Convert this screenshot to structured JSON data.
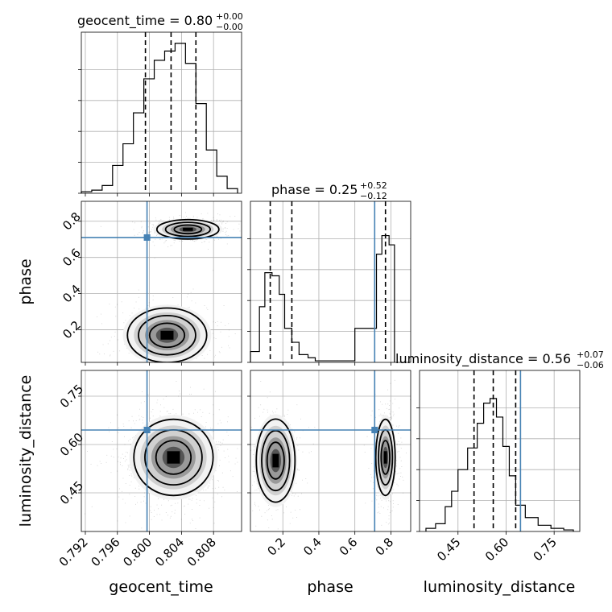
{
  "chart_data": {
    "type": "corner",
    "parameters": [
      "geocent_time",
      "phase",
      "luminosity_distance"
    ],
    "truth": {
      "geocent_time": 0.7997,
      "phase": 0.71,
      "luminosity_distance": 0.645
    },
    "truth_color": "#4682b4",
    "grid": true,
    "panels": {
      "geocent_time_hist": {
        "title_name": "geocent_time",
        "title_value": "0.80",
        "title_plus": "+0.00",
        "title_minus": "−0.00",
        "xlim": [
          0.7915,
          0.8115
        ],
        "quantiles": [
          0.7995,
          0.8027,
          0.8058
        ],
        "bin_edges": [
          0.7915,
          0.7928,
          0.7941,
          0.7954,
          0.7967,
          0.798,
          0.7993,
          0.8006,
          0.8019,
          0.8032,
          0.8045,
          0.8058,
          0.8071,
          0.8084,
          0.8097,
          0.811
        ],
        "counts": [
          0.01,
          0.02,
          0.05,
          0.18,
          0.32,
          0.52,
          0.74,
          0.86,
          0.92,
          0.97,
          0.84,
          0.58,
          0.28,
          0.11,
          0.03
        ]
      },
      "phase_hist": {
        "title_name": "phase",
        "title_value": "0.25",
        "title_plus": "+0.52",
        "title_minus": "−0.12",
        "xlim": [
          0.02,
          0.91
        ],
        "quantiles": [
          0.13,
          0.25,
          0.77
        ],
        "bin_edges": [
          0.02,
          0.07,
          0.1,
          0.14,
          0.18,
          0.21,
          0.25,
          0.29,
          0.34,
          0.38,
          0.45,
          0.5,
          0.6,
          0.72,
          0.75,
          0.79,
          0.82
        ],
        "counts": [
          0.07,
          0.36,
          0.58,
          0.56,
          0.44,
          0.22,
          0.13,
          0.05,
          0.03,
          0.01,
          0.01,
          0.01,
          0.22,
          0.7,
          0.82,
          0.76
        ]
      },
      "luminosity_distance_hist": {
        "title_name": "luminosity_distance",
        "title_value": "0.56",
        "title_plus": "+0.07",
        "title_minus": "−0.06",
        "xlim": [
          0.33,
          0.83
        ],
        "quantiles": [
          0.5,
          0.56,
          0.63
        ],
        "bin_edges": [
          0.35,
          0.38,
          0.41,
          0.43,
          0.45,
          0.48,
          0.51,
          0.53,
          0.55,
          0.57,
          0.59,
          0.61,
          0.63,
          0.66,
          0.7,
          0.74,
          0.78,
          0.81
        ],
        "counts": [
          0.02,
          0.05,
          0.16,
          0.26,
          0.4,
          0.54,
          0.7,
          0.83,
          0.86,
          0.74,
          0.55,
          0.36,
          0.17,
          0.09,
          0.04,
          0.02,
          0.01
        ]
      }
    },
    "axes": {
      "geocent_time": {
        "ticks": [
          0.792,
          0.796,
          0.8,
          0.804,
          0.808
        ],
        "tick_labels": [
          "0.792",
          "0.796",
          "0.800",
          "0.804",
          "0.808"
        ]
      },
      "phase": {
        "ticks": [
          0.2,
          0.4,
          0.6,
          0.8
        ],
        "tick_labels": [
          "0.2",
          "0.4",
          "0.6",
          "0.8"
        ]
      },
      "luminosity_distance": {
        "ticks": [
          0.45,
          0.6,
          0.75
        ],
        "tick_labels": [
          "0.45",
          "0.60",
          "0.75"
        ]
      }
    },
    "posterior_modes": {
      "geocent_time_vs_phase": [
        {
          "x": 0.8048,
          "y": 0.755,
          "sx": 0.0018,
          "sy": 0.025,
          "weight": 0.55
        },
        {
          "x": 0.8022,
          "y": 0.17,
          "sx": 0.0023,
          "sy": 0.07,
          "weight": 0.45
        }
      ],
      "geocent_time_vs_luminosity_distance": [
        {
          "x": 0.803,
          "y": 0.56,
          "sx": 0.0023,
          "sy": 0.055,
          "weight": 1.0
        }
      ],
      "phase_vs_luminosity_distance": [
        {
          "x": 0.16,
          "y": 0.55,
          "sx": 0.05,
          "sy": 0.06,
          "weight": 0.45
        },
        {
          "x": 0.77,
          "y": 0.56,
          "sx": 0.025,
          "sy": 0.055,
          "weight": 0.55
        }
      ]
    },
    "xlabels": [
      "geocent_time",
      "phase",
      "luminosity_distance"
    ],
    "ylabels": [
      "phase",
      "luminosity_distance"
    ]
  }
}
